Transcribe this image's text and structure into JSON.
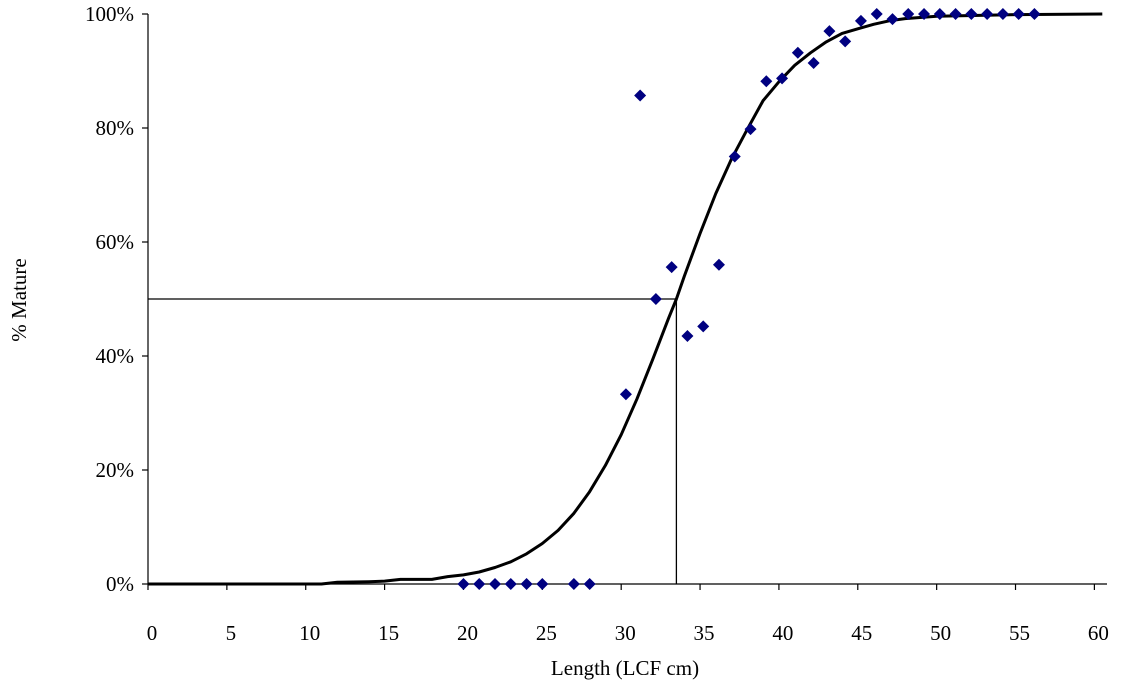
{
  "chart_data": {
    "type": "scatter",
    "xlabel": "Length (LCF cm)",
    "ylabel": "% Mature",
    "xlim": [
      0,
      60
    ],
    "ylim": [
      0,
      100
    ],
    "x_ticks": [
      0,
      5,
      10,
      15,
      20,
      25,
      30,
      35,
      40,
      45,
      50,
      55,
      60
    ],
    "x_tick_labels": [
      "0",
      "5",
      "10",
      "15",
      "20",
      "25",
      "30",
      "35",
      "40",
      "45",
      "50",
      "55",
      "60"
    ],
    "y_ticks": [
      0,
      20,
      40,
      60,
      80,
      100
    ],
    "y_tick_labels": [
      "0%",
      "20%",
      "40%",
      "60%",
      "80%",
      "100%"
    ],
    "grid": false,
    "legend": "none",
    "series": [
      {
        "kind": "scatter",
        "marker": "diamond",
        "color": "#000080",
        "points": [
          [
            20,
            0
          ],
          [
            21,
            0
          ],
          [
            22,
            0
          ],
          [
            23,
            0
          ],
          [
            24,
            0
          ],
          [
            25,
            0
          ],
          [
            27,
            0
          ],
          [
            28,
            0
          ],
          [
            30.3,
            33.3
          ],
          [
            31.2,
            85.7
          ],
          [
            32.2,
            50
          ],
          [
            33.2,
            55.6
          ],
          [
            34.2,
            43.5
          ],
          [
            35.2,
            45.2
          ],
          [
            36.2,
            56
          ],
          [
            37.2,
            75
          ],
          [
            38.2,
            79.8
          ],
          [
            39.2,
            88.2
          ],
          [
            40.2,
            88.7
          ],
          [
            41.2,
            93.2
          ],
          [
            42.2,
            91.4
          ],
          [
            43.2,
            97
          ],
          [
            44.2,
            95.2
          ],
          [
            45.2,
            98.8
          ],
          [
            46.2,
            100
          ],
          [
            47.2,
            99.1
          ],
          [
            48.2,
            100
          ],
          [
            49.2,
            100
          ],
          [
            50.2,
            100
          ],
          [
            51.2,
            100
          ],
          [
            52.2,
            100
          ],
          [
            53.2,
            100
          ],
          [
            54.2,
            100
          ],
          [
            55.2,
            100
          ],
          [
            56.2,
            100
          ]
        ]
      },
      {
        "kind": "line",
        "color": "#000000",
        "points": [
          [
            0,
            0
          ],
          [
            11,
            0
          ],
          [
            12,
            0.3
          ],
          [
            14,
            0.4
          ],
          [
            15,
            0.5
          ],
          [
            16,
            0.8
          ],
          [
            18,
            0.8
          ],
          [
            19,
            1.3
          ],
          [
            20,
            1.6
          ],
          [
            21,
            2.1
          ],
          [
            22,
            2.9
          ],
          [
            23,
            3.9
          ],
          [
            24,
            5.3
          ],
          [
            25,
            7.1
          ],
          [
            26,
            9.4
          ],
          [
            27,
            12.4
          ],
          [
            28,
            16.2
          ],
          [
            29,
            20.8
          ],
          [
            30,
            26.2
          ],
          [
            31,
            32.5
          ],
          [
            32,
            39.4
          ],
          [
            33,
            46.6
          ],
          [
            33.5,
            50
          ],
          [
            34,
            54
          ],
          [
            35,
            61.5
          ],
          [
            36,
            68.5
          ],
          [
            37,
            74.6
          ],
          [
            38,
            79.8
          ],
          [
            39,
            84.8
          ],
          [
            40,
            88.1
          ],
          [
            41,
            91
          ],
          [
            42,
            93.2
          ],
          [
            43,
            95.1
          ],
          [
            44,
            96.6
          ],
          [
            45,
            97.4
          ],
          [
            46,
            98.2
          ],
          [
            47,
            98.8
          ],
          [
            48,
            99.2
          ],
          [
            50,
            99.6
          ],
          [
            55,
            99.9
          ],
          [
            60.5,
            100
          ]
        ]
      }
    ],
    "reference_lines": [
      {
        "from": [
          0,
          50
        ],
        "to": [
          33.5,
          50
        ]
      },
      {
        "from": [
          33.5,
          50
        ],
        "to": [
          33.5,
          0
        ]
      }
    ]
  }
}
